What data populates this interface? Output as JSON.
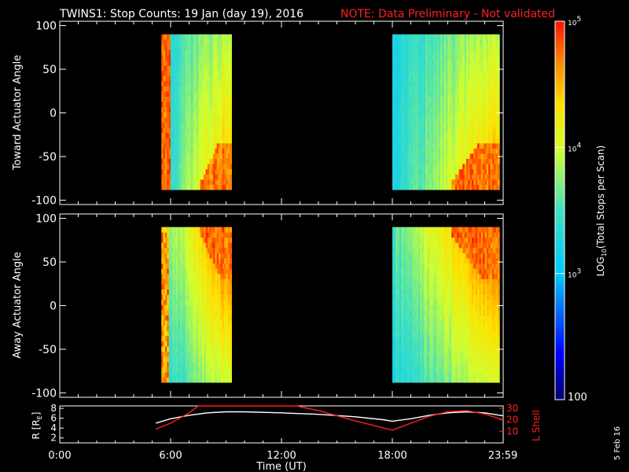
{
  "title": "TWINS1: Stop Counts: 19 Jan (day  19), 2016",
  "note": "NOTE: Data Preliminary - Not validated",
  "date_stamp": "5 Feb 16",
  "chart_data": [
    {
      "type": "heatmap",
      "name": "toward",
      "ylabel": "Toward Actuator Angle",
      "ylim": [
        -105,
        105
      ],
      "yticks": [
        100,
        50,
        0,
        -50,
        -100
      ],
      "x_range_hours": [
        0,
        24
      ],
      "coverage_hours": [
        [
          5.5,
          9.3
        ],
        [
          18.0,
          23.8
        ]
      ],
      "angle_range": [
        -88,
        90
      ]
    },
    {
      "type": "heatmap",
      "name": "away",
      "ylabel": "Away Actuator Angle",
      "ylim": [
        -105,
        105
      ],
      "yticks": [
        100,
        50,
        0,
        -50,
        -100
      ],
      "x_range_hours": [
        0,
        24
      ],
      "coverage_hours": [
        [
          5.5,
          9.3
        ],
        [
          18.0,
          23.8
        ]
      ],
      "angle_range": [
        -88,
        90
      ]
    },
    {
      "type": "line",
      "name": "orbit",
      "ylabel_left": "R [R",
      "ylabel_left_sub": "E",
      "ylabel_left_end": "]",
      "ylim_left": [
        1,
        8.5
      ],
      "yticks_left": [
        2,
        4,
        6,
        8
      ],
      "ylabel_right": "L Shell",
      "ylim_right": [
        0,
        32
      ],
      "yticks_right": [
        10,
        20,
        30
      ],
      "xlabel": "Time (UT)",
      "xticks": [
        0,
        6,
        12,
        18,
        23.98
      ],
      "xtick_labels": [
        "0:00",
        "6:00",
        "12:00",
        "18:00",
        "23:59"
      ],
      "series": [
        {
          "name": "R",
          "color": "#ffffff",
          "x": [
            5.2,
            6,
            7,
            8,
            9,
            10,
            12,
            14,
            16,
            17.5,
            18,
            19,
            20,
            21,
            22,
            23,
            23.98
          ],
          "y": [
            5.0,
            5.9,
            6.6,
            7.1,
            7.3,
            7.3,
            7.1,
            6.8,
            6.3,
            5.7,
            5.4,
            5.9,
            6.6,
            7.1,
            7.3,
            7.1,
            6.5
          ]
        },
        {
          "name": "L Shell",
          "color": "#ff2020",
          "x": [
            5.2,
            6,
            7,
            7.5,
            12.8,
            14,
            16,
            18,
            19,
            20,
            21,
            22,
            23,
            23.98
          ],
          "y": [
            12,
            17,
            26,
            32,
            32,
            28,
            19,
            11,
            17,
            23,
            27,
            28,
            25,
            20
          ]
        }
      ]
    }
  ],
  "colorbar": {
    "label": "LOG",
    "label_sub": "10",
    "label_end": "(Total Stops per Scan)",
    "min_label": "100",
    "tick_base": "10",
    "ticks": [
      {
        "value": 5,
        "exp": "5"
      },
      {
        "value": 4,
        "exp": "4"
      },
      {
        "value": 3,
        "exp": "3"
      }
    ],
    "range_log": [
      2,
      5
    ]
  }
}
